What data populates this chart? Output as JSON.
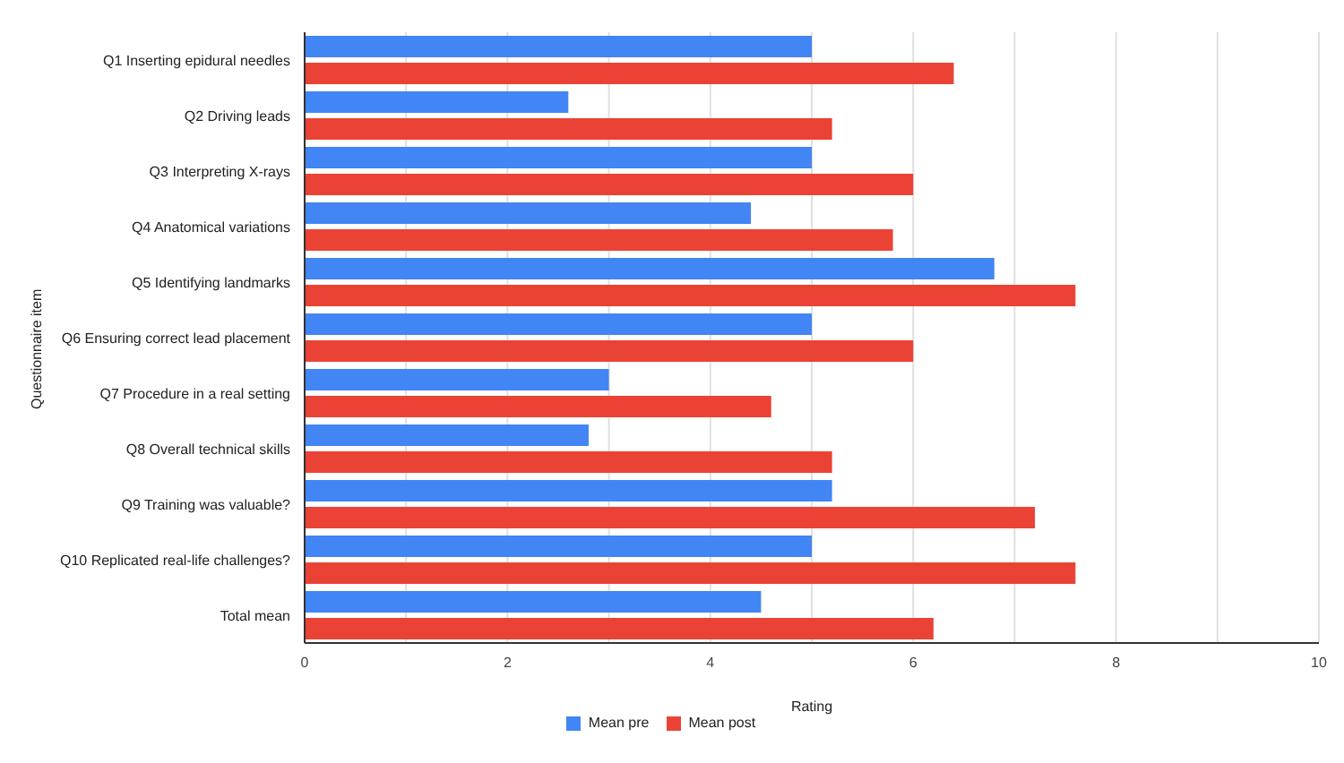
{
  "chart_data": {
    "type": "bar",
    "orientation": "horizontal",
    "xlabel": "Rating",
    "ylabel": "Questionnaire item",
    "categories": [
      "Q1 Inserting epidural needles",
      "Q2 Driving leads",
      "Q3 Interpreting X-rays",
      "Q4 Anatomical variations",
      "Q5 Identifying landmarks",
      "Q6 Ensuring correct lead placement",
      "Q7 Procedure in a real setting",
      "Q8 Overall technical skills",
      "Q9 Training was valuable?",
      "Q10 Replicated real-life challenges?",
      "Total mean"
    ],
    "series": [
      {
        "name": "Mean pre",
        "color": "#4285f4",
        "values": [
          5.0,
          2.6,
          5.0,
          4.4,
          6.8,
          5.0,
          3.0,
          2.8,
          5.2,
          5.0,
          4.5
        ]
      },
      {
        "name": "Mean post",
        "color": "#ea4335",
        "values": [
          6.4,
          5.2,
          6.0,
          5.8,
          7.6,
          6.0,
          4.6,
          5.2,
          7.2,
          7.6,
          6.2
        ]
      }
    ],
    "xlim": [
      0,
      10
    ],
    "xticks": [
      0,
      {
        "value": 1,
        "label": null
      },
      2,
      {
        "value": 3,
        "label": null
      },
      4,
      {
        "value": 5,
        "label": null
      },
      6,
      {
        "value": 7,
        "label": null
      },
      8,
      {
        "value": 9,
        "label": null
      },
      10
    ],
    "grid": "x",
    "legend": "bottom"
  }
}
